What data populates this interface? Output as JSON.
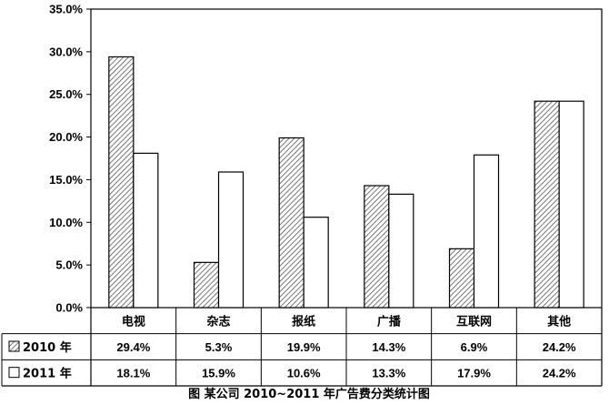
{
  "chart_data": {
    "type": "bar",
    "title": "图  某公司 2010~2011 年广告费分类统计图",
    "categories": [
      "电视",
      "杂志",
      "报纸",
      "广播",
      "互联网",
      "其他"
    ],
    "series": [
      {
        "name": "2010 年",
        "values": [
          29.4,
          5.3,
          19.9,
          14.3,
          6.9,
          24.2
        ],
        "labels": [
          "29.4%",
          "5.3%",
          "19.9%",
          "14.3%",
          "6.9%",
          "24.2%"
        ],
        "fill": "hatched"
      },
      {
        "name": "2011 年",
        "values": [
          18.1,
          15.9,
          10.6,
          13.3,
          17.9,
          24.2
        ],
        "labels": [
          "18.1%",
          "15.9%",
          "10.6%",
          "13.3%",
          "17.9%",
          "24.2%"
        ],
        "fill": "white"
      }
    ],
    "y_ticks": [
      "0.0%",
      "5.0%",
      "10.0%",
      "15.0%",
      "20.0%",
      "25.0%",
      "30.0%",
      "35.0%"
    ],
    "ylim": [
      0,
      35
    ],
    "grid": false,
    "legend": "data-table",
    "colors": {
      "line": "#000000",
      "hatch": "#555555",
      "background": "#ffffff"
    }
  }
}
